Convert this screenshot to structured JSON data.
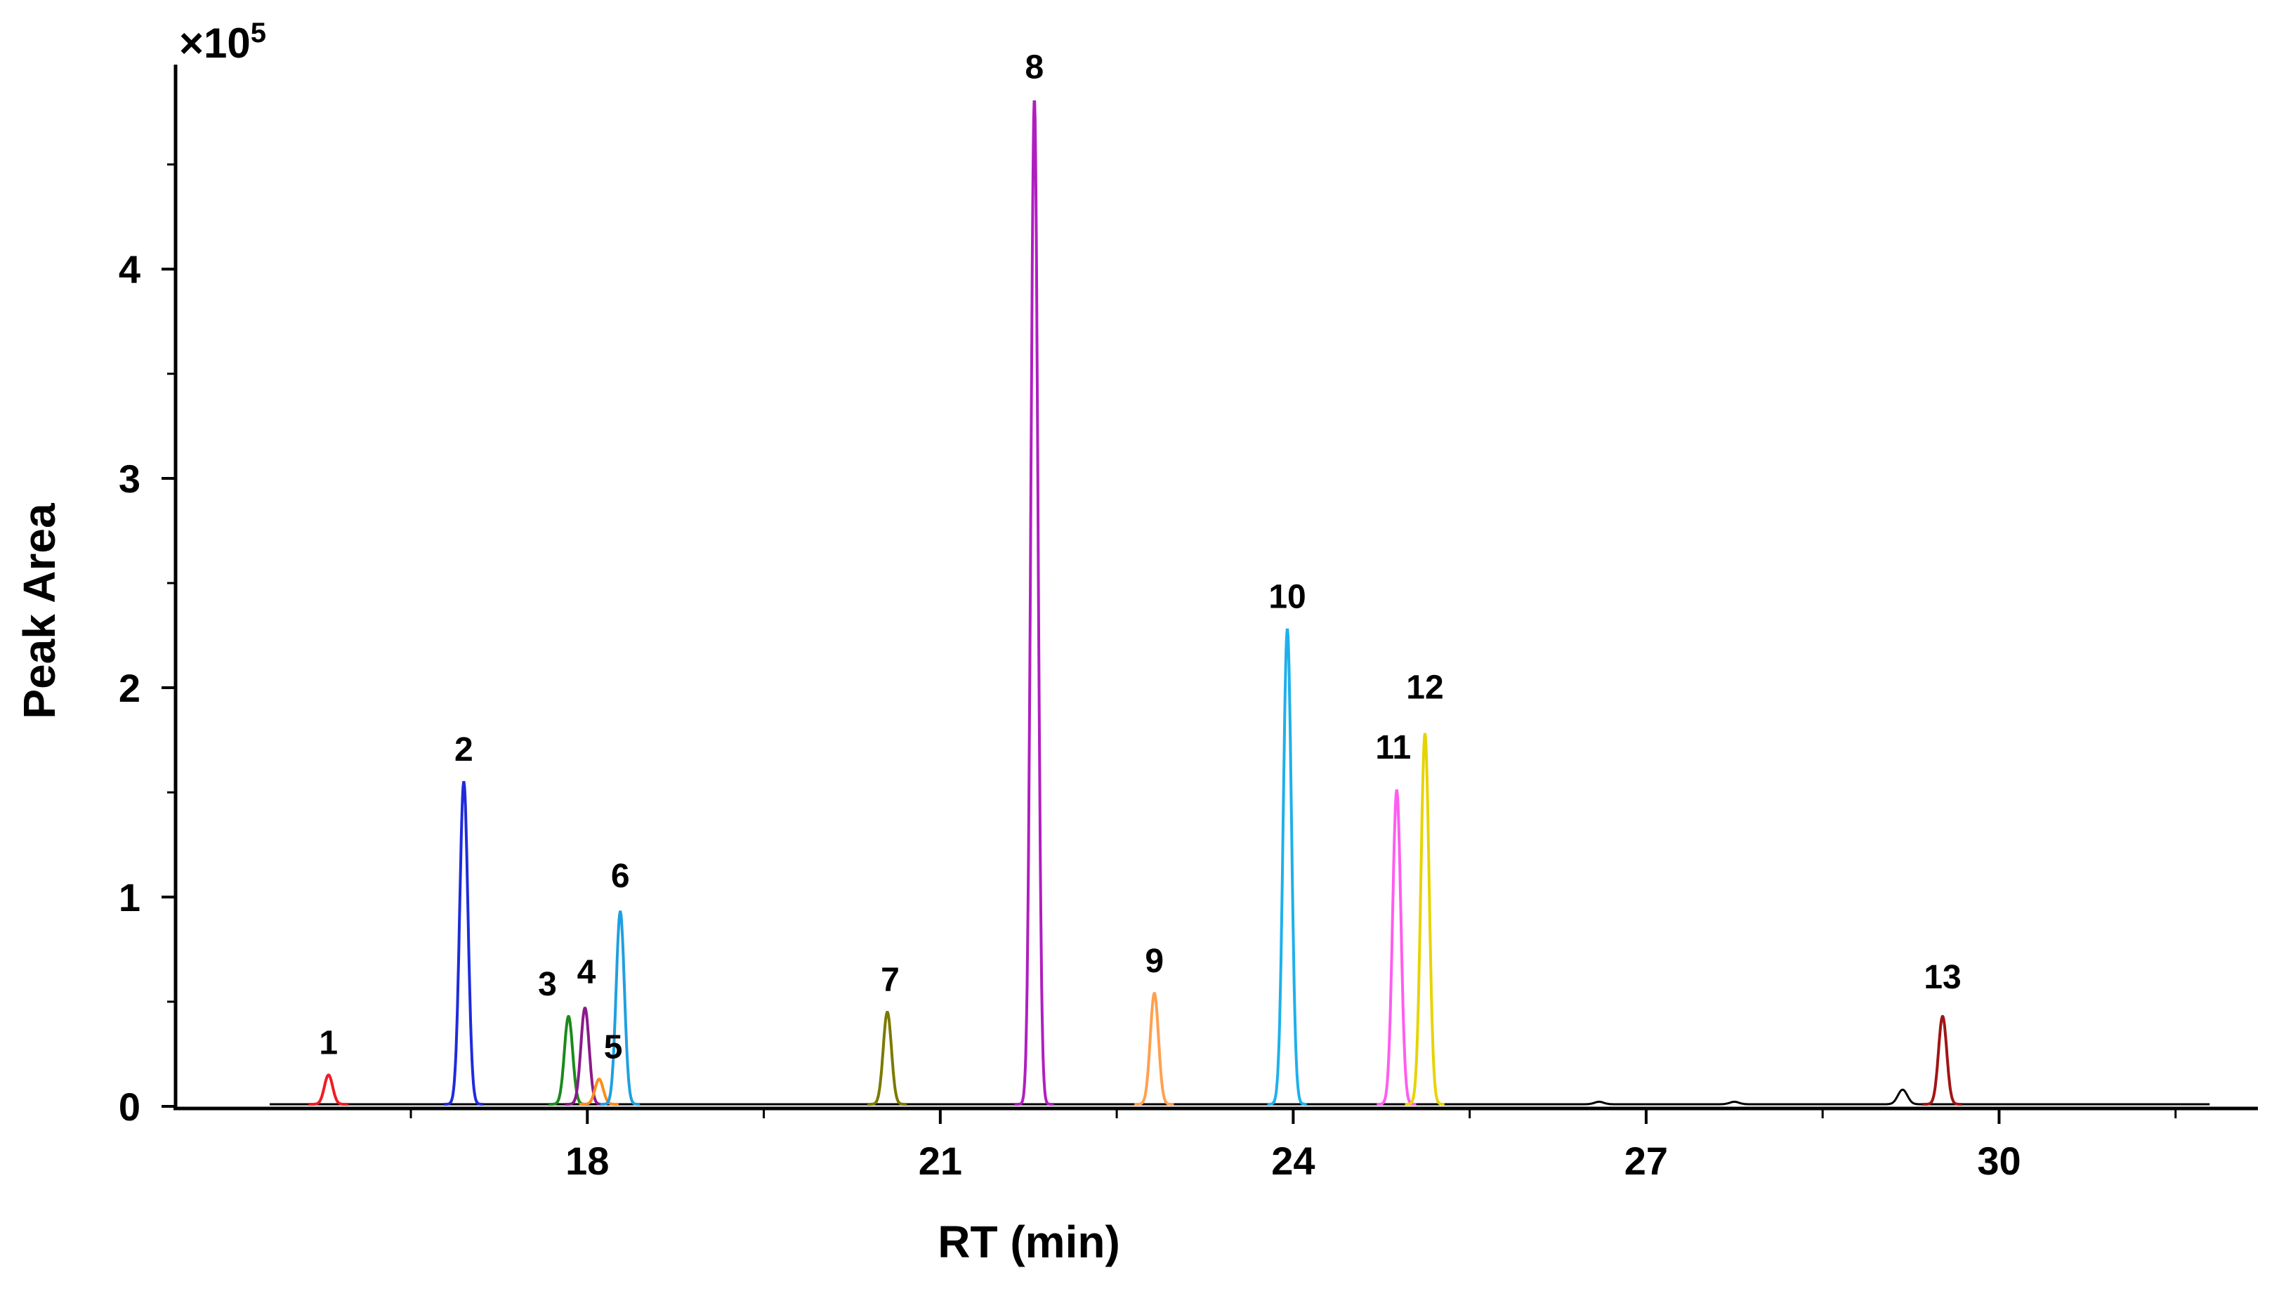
{
  "chart_data": {
    "type": "line",
    "xlabel": "RT (min)",
    "ylabel": "Peak Area",
    "y_multiplier_label": "×10",
    "y_multiplier_exp": "5",
    "xlim": [
      14.5,
      32.2
    ],
    "ylim": [
      0,
      4.95
    ],
    "x_ticks": [
      "18",
      "21",
      "24",
      "27",
      "30"
    ],
    "y_ticks": [
      "0",
      "1",
      "2",
      "3",
      "4"
    ],
    "baseline": 0.01,
    "series": [
      {
        "label": "1",
        "rt": 15.8,
        "height": 0.14,
        "color": "#ee1c25"
      },
      {
        "label": "2",
        "rt": 16.95,
        "height": 1.54,
        "color": "#1f2bdb"
      },
      {
        "label": "3",
        "rt": 17.84,
        "height": 0.42,
        "color": "#1a8a1a"
      },
      {
        "label": "4",
        "rt": 17.98,
        "height": 0.46,
        "color": "#8b1a8b"
      },
      {
        "label": "5",
        "rt": 18.1,
        "height": 0.12,
        "color": "#ff8c1a"
      },
      {
        "label": "6",
        "rt": 18.28,
        "height": 0.92,
        "color": "#1ea0e0"
      },
      {
        "label": "7",
        "rt": 20.55,
        "height": 0.44,
        "color": "#7a7a00"
      },
      {
        "label": "8",
        "rt": 21.8,
        "height": 4.8,
        "color": "#b01ec0"
      },
      {
        "label": "9",
        "rt": 22.82,
        "height": 0.53,
        "color": "#ffa050"
      },
      {
        "label": "10",
        "rt": 23.95,
        "height": 2.27,
        "color": "#1eb0ec"
      },
      {
        "label": "11",
        "rt": 24.88,
        "height": 1.5,
        "color": "#ff5cf0"
      },
      {
        "label": "12",
        "rt": 25.12,
        "height": 1.77,
        "color": "#e6d400"
      },
      {
        "label": "13",
        "rt": 29.52,
        "height": 0.42,
        "color": "#a01515"
      }
    ],
    "minor_peaks": [
      {
        "rt": 29.18,
        "height": 0.07
      },
      {
        "rt": 26.6,
        "height": 0.012
      },
      {
        "rt": 27.75,
        "height": 0.012
      }
    ],
    "baseline_color": "#000000"
  }
}
